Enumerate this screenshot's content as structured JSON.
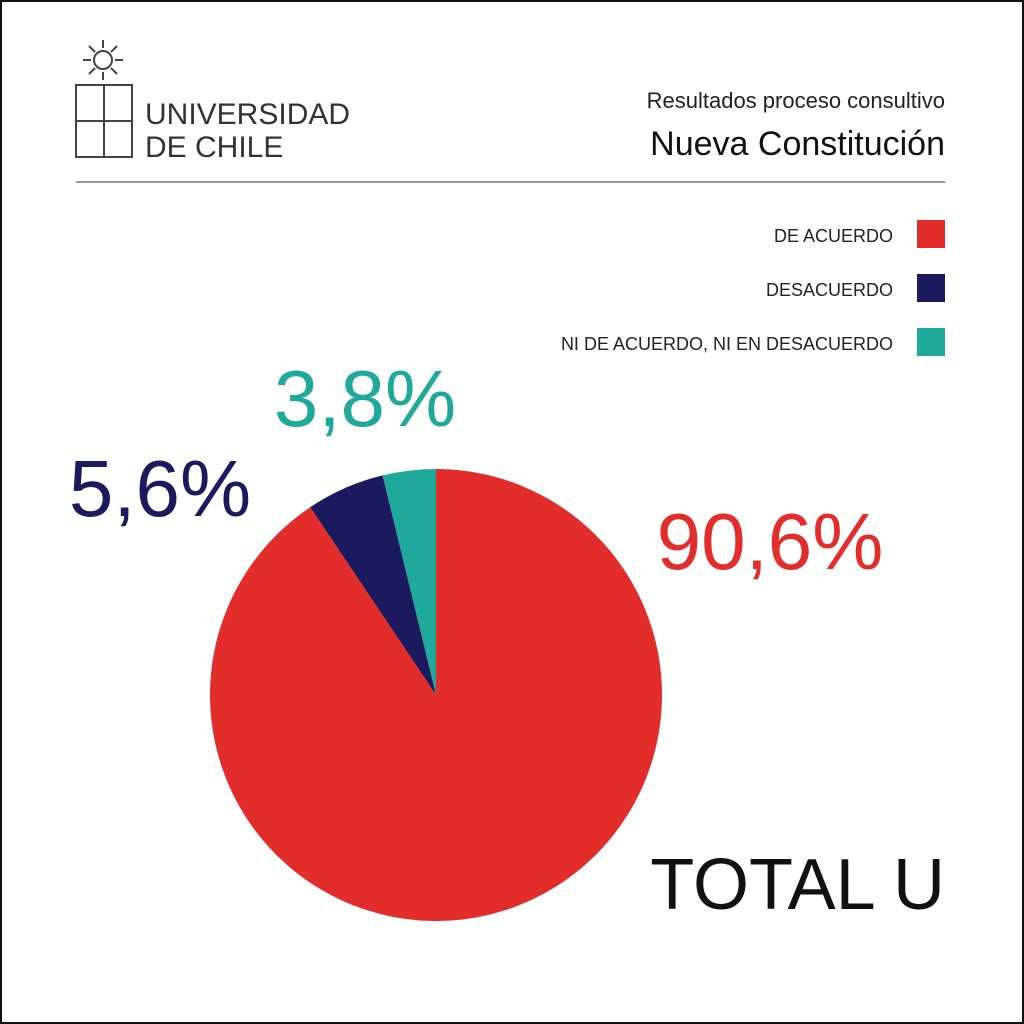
{
  "chart_data": {
    "type": "pie",
    "logo_text": [
      "UNIVERSIDAD",
      "DE CHILE"
    ],
    "subtitle": "Resultados proceso consultivo",
    "title": "Nueva Constitución",
    "categories": [
      "DE ACUERDO",
      "DESACUERDO",
      "NI DE ACUERDO, NI EN DESACUERDO"
    ],
    "values": [
      90.6,
      5.6,
      3.8
    ],
    "value_labels": [
      "90,6%",
      "5,6%",
      "3,8%"
    ],
    "colors": [
      "#e32d2a",
      "#1c1a5e",
      "#1fa99a"
    ],
    "annotation": "TOTAL U"
  }
}
